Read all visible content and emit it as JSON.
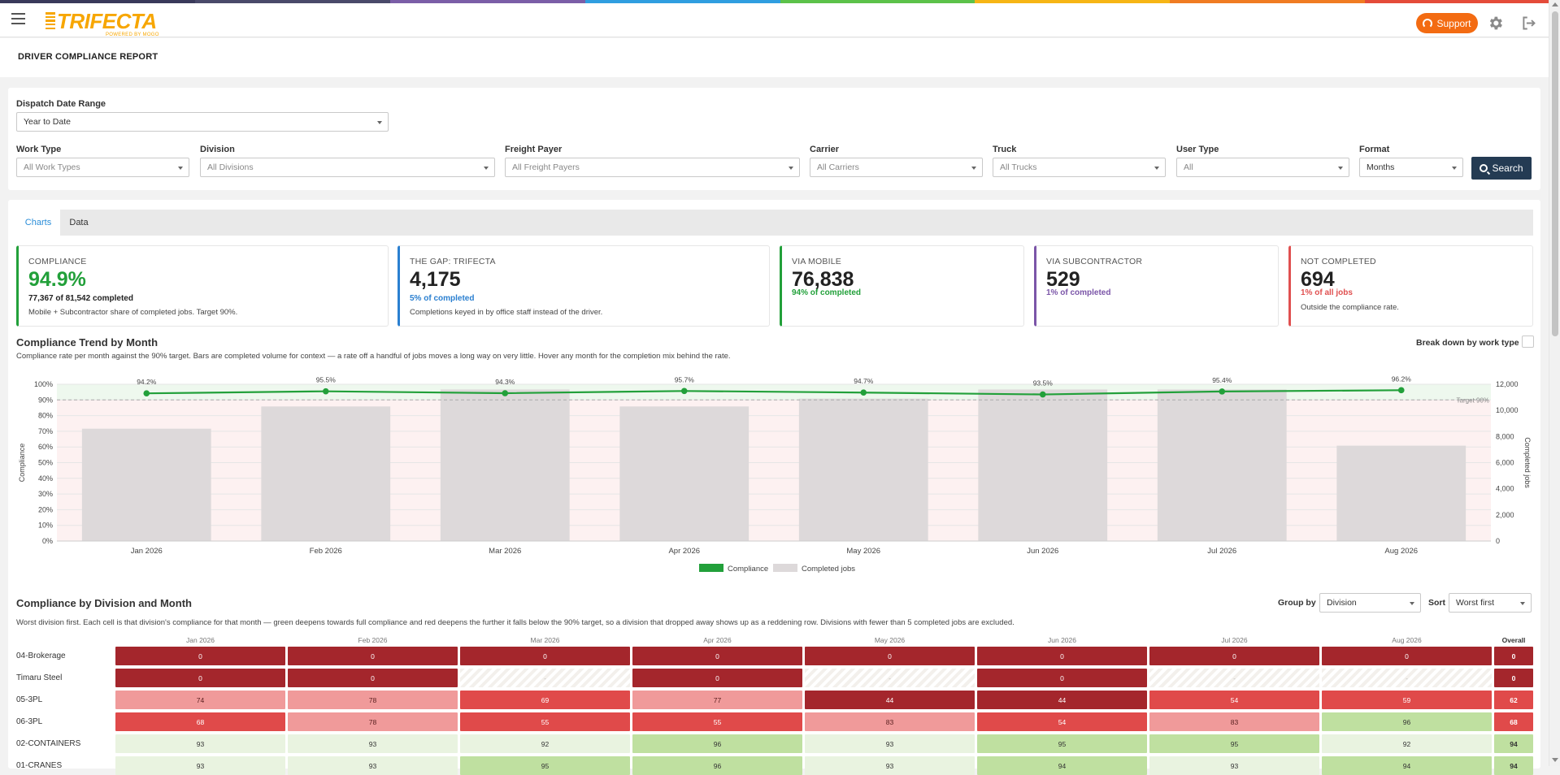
{
  "colors": {
    "rainbow": [
      "#3a3a5a",
      "#4a4a6a",
      "#7b5ea7",
      "#2f9ee0",
      "#5cc24a",
      "#f6b516",
      "#f07c22",
      "#e44b3a"
    ],
    "accent_green": "#22a03a",
    "accent_blue": "#2a7fd0",
    "accent_purple": "#7b55a8",
    "accent_red": "#e05050",
    "support": "#f36b12",
    "search": "#243b53"
  },
  "header": {
    "logo_text": "TRIFECTA",
    "logo_sub": "POWERED BY MOGO",
    "support_label": "Support",
    "menu_icon": "hamburger-menu-icon",
    "settings_icon": "gear-icon",
    "logout_icon": "logout-icon"
  },
  "page": {
    "title": "DRIVER COMPLIANCE REPORT"
  },
  "filters": {
    "date_range": {
      "label": "Dispatch Date Range",
      "value": "Year to Date"
    },
    "work_type": {
      "label": "Work Type",
      "placeholder": "All Work Types"
    },
    "division": {
      "label": "Division",
      "placeholder": "All Divisions"
    },
    "freight_payer": {
      "label": "Freight Payer",
      "placeholder": "All Freight Payers"
    },
    "carrier": {
      "label": "Carrier",
      "placeholder": "All Carriers"
    },
    "truck": {
      "label": "Truck",
      "placeholder": "All Trucks"
    },
    "user_type": {
      "label": "User Type",
      "placeholder": "All"
    },
    "format": {
      "label": "Format",
      "value": "Months"
    },
    "search_label": "Search"
  },
  "tabs": [
    {
      "label": "Charts"
    },
    {
      "label": "Data"
    }
  ],
  "kpis": {
    "compliance": {
      "title": "COMPLIANCE",
      "value": "94.9%",
      "sub": "77,367 of 81,542 completed",
      "note": "Mobile + Subcontractor share of completed jobs. Target 90%."
    },
    "gap": {
      "title": "THE GAP: TRIFECTA",
      "value": "4,175",
      "sub": "5% of completed",
      "note": "Completions keyed in by office staff instead of the driver."
    },
    "mobile": {
      "title": "VIA MOBILE",
      "value": "76,838",
      "sub": "94% of completed"
    },
    "subcontractor": {
      "title": "VIA SUBCONTRACTOR",
      "value": "529",
      "sub": "1% of completed"
    },
    "not_completed": {
      "title": "NOT COMPLETED",
      "value": "694",
      "sub": "1% of all jobs",
      "note": "Outside the compliance rate."
    }
  },
  "trend": {
    "title": "Compliance Trend by Month",
    "desc": "Compliance rate per month against the 90% target. Bars are completed volume for context — a rate off a handful of jobs moves a long way on very little. Hover any month for the completion mix behind the rate.",
    "breakdown_label": "Break down by work type"
  },
  "chart_data": {
    "type": "bar",
    "categories": [
      "Jan 2026",
      "Feb 2026",
      "Mar 2026",
      "Apr 2026",
      "May 2026",
      "Jun 2026",
      "Jul 2026",
      "Aug 2026"
    ],
    "series": [
      {
        "name": "Compliance",
        "type": "line",
        "axis": "left",
        "values": [
          94.2,
          95.5,
          94.3,
          95.7,
          94.7,
          93.5,
          95.4,
          96.2
        ],
        "labels": [
          "94.2%",
          "95.5%",
          "94.3%",
          "95.7%",
          "94.7%",
          "93.5%",
          "95.4%",
          "96.2%"
        ]
      },
      {
        "name": "Completed jobs",
        "type": "bar",
        "axis": "right",
        "values": [
          8600,
          10300,
          11600,
          10300,
          10900,
          11600,
          11600,
          7300
        ]
      }
    ],
    "ylabel": "Compliance",
    "y2label": "Completed jobs",
    "ylim": [
      0,
      100
    ],
    "y2lim": [
      0,
      12000
    ],
    "yticks": [
      "0%",
      "10%",
      "20%",
      "30%",
      "40%",
      "50%",
      "60%",
      "70%",
      "80%",
      "90%",
      "100%"
    ],
    "y2ticks": [
      "0",
      "2,000",
      "4,000",
      "6,000",
      "8,000",
      "10,000",
      "12,000"
    ],
    "target": 90,
    "target_label": "Target 90%",
    "legend_position": "bottom-center",
    "grid": true
  },
  "heatmap": {
    "title": "Compliance by Division and Month",
    "desc": "Worst division first. Each cell is that division's compliance for that month — green deepens towards full compliance and red deepens the further it falls below the 90% target, so a division that dropped away shows up as a reddening row. Divisions with fewer than 5 completed jobs are excluded.",
    "group_by_label": "Group by",
    "group_by_value": "Division",
    "sort_label": "Sort",
    "sort_value": "Worst first",
    "months": [
      "Jan 2026",
      "Feb 2026",
      "Mar 2026",
      "Apr 2026",
      "May 2026",
      "Jun 2026",
      "Jul 2026",
      "Aug 2026"
    ],
    "overall_label": "Overall",
    "rows": [
      {
        "name": "04-Brokerage",
        "cells": [
          "0",
          "0",
          "0",
          "0",
          "0",
          "0",
          "0",
          "0"
        ],
        "overall": "0"
      },
      {
        "name": "Timaru Steel",
        "cells": [
          "0",
          "0",
          "-",
          "0",
          "-",
          "0",
          "-",
          "-"
        ],
        "overall": "0"
      },
      {
        "name": "05-3PL",
        "cells": [
          "74",
          "78",
          "69",
          "77",
          "44",
          "44",
          "54",
          "59"
        ],
        "overall": "62"
      },
      {
        "name": "06-3PL",
        "cells": [
          "68",
          "78",
          "55",
          "55",
          "83",
          "54",
          "83",
          "96"
        ],
        "overall": "68"
      },
      {
        "name": "02-CONTAINERS",
        "cells": [
          "93",
          "93",
          "92",
          "96",
          "93",
          "95",
          "95",
          "92"
        ],
        "overall": "94"
      },
      {
        "name": "01-CRANES",
        "cells": [
          "93",
          "93",
          "95",
          "96",
          "93",
          "94",
          "93",
          "94"
        ],
        "overall": "94"
      }
    ]
  }
}
